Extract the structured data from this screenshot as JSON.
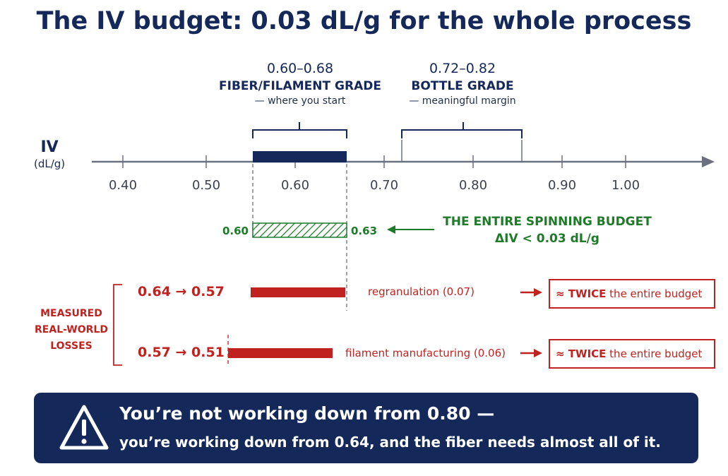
{
  "title": "The IV budget: 0.03 dL/g for the whole process",
  "axis": {
    "label": "IV",
    "unit": "(dL/g)",
    "ticks": [
      "0.40",
      "0.50",
      "0.60",
      "0.70",
      "0.80",
      "0.90",
      "1.00"
    ]
  },
  "grades": {
    "fiber": {
      "range": "0.60–0.68",
      "name": "FIBER/FILAMENT GRADE",
      "note": "— where you start"
    },
    "bottle": {
      "range": "0.72–0.82",
      "name": "BOTTLE GRADE",
      "note": "— meaningful margin"
    }
  },
  "spinning_budget": {
    "low": "0.60",
    "high": "0.63",
    "label": "THE ENTIRE SPINNING BUDGET",
    "delta": "ΔIV < 0.03 dL/g"
  },
  "measured_label": [
    "MEASURED",
    "REAL-WORLD",
    "LOSSES"
  ],
  "losses": [
    {
      "range": "0.64 → 0.57",
      "note": "regranulation (0.07)",
      "verdict_bold": "≈ TWICE",
      "verdict_rest": " the entire budget"
    },
    {
      "range": "0.57 → 0.51",
      "note": "filament manufacturing (0.06)",
      "verdict_bold": "≈ TWICE",
      "verdict_rest": " the entire budget"
    }
  ],
  "banner": {
    "line1": "You’re not working down from 0.80 —",
    "line2": "you’re working down from 0.64, and the fiber needs almost all of it."
  },
  "colors": {
    "navy": "#14285a",
    "green": "#1f7a2a",
    "red": "#c0231f"
  }
}
